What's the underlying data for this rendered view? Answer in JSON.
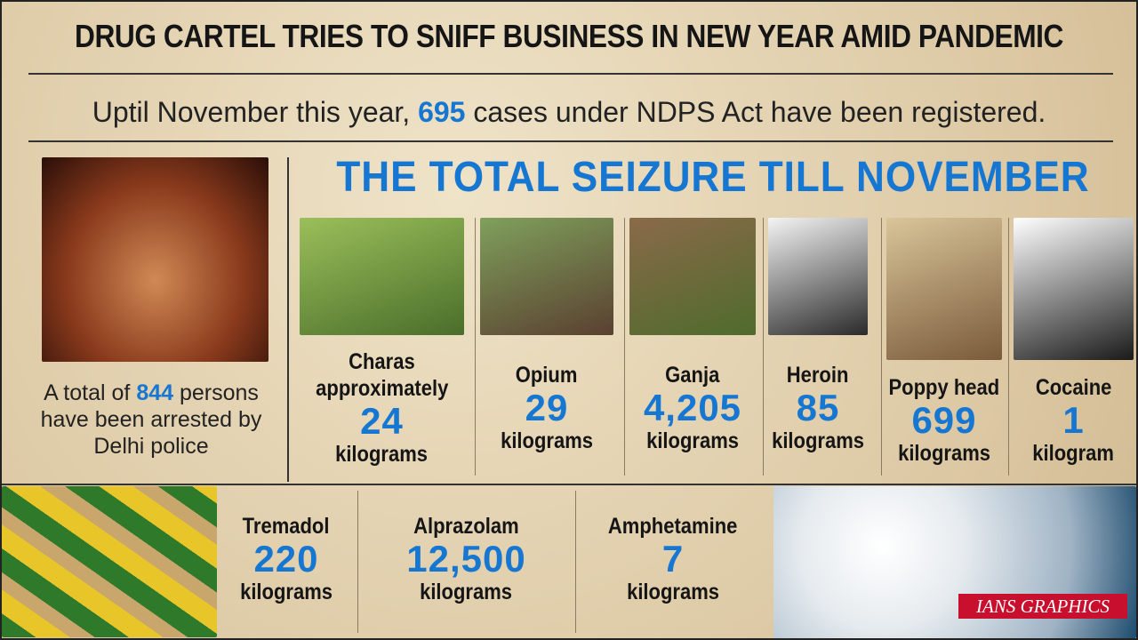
{
  "title": "DRUG CARTEL TRIES TO SNIFF BUSINESS IN NEW YEAR AMID PANDEMIC",
  "subtitle": {
    "before": "Uptil November this year,",
    "number": "695",
    "after": "cases under NDPS Act have been registered."
  },
  "arrests": {
    "before": "A total of",
    "number": "844",
    "after": "persons have been arrested by Delhi police"
  },
  "heading": "THE TOTAL SEIZURE TILL NOVEMBER",
  "seizures": [
    {
      "name": "Charas",
      "qualifier": "approximately",
      "amount": "24",
      "unit": "kilograms"
    },
    {
      "name": "Opium",
      "amount": "29",
      "unit": "kilograms"
    },
    {
      "name": "Ganja",
      "amount": "4,205",
      "unit": "kilograms"
    },
    {
      "name": "Heroin",
      "amount": "85",
      "unit": "kilograms"
    },
    {
      "name": "Poppy head",
      "amount": "699",
      "unit": "kilograms"
    },
    {
      "name": "Cocaine",
      "amount": "1",
      "unit": "kilogram"
    }
  ],
  "pills": [
    {
      "name": "Tremadol",
      "amount": "220",
      "unit": "kilograms"
    },
    {
      "name": "Alprazolam",
      "amount": "12,500",
      "unit": "kilograms"
    },
    {
      "name": "Amphetamine",
      "amount": "7",
      "unit": "kilograms"
    }
  ],
  "credit": "IANS GRAPHICS"
}
